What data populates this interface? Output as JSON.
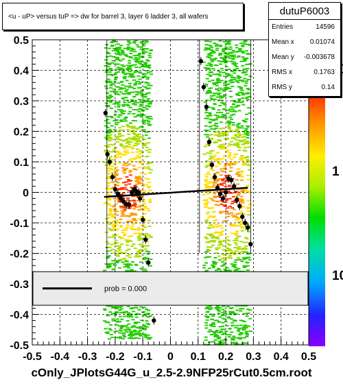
{
  "chart_data": {
    "type": "scatter",
    "title": "<u - uP>       versus  tuP =>  dw for barrel 3, layer 6 ladder 3, all  wafers",
    "xlim": [
      -0.5,
      0.5
    ],
    "ylim": [
      -0.5,
      0.5
    ],
    "x_ticks": [
      "-0.5",
      "-0.4",
      "-0.3",
      "-0.2",
      "-0.1",
      "0",
      "0.1",
      "0.2",
      "0.3",
      "0.4",
      "0.5"
    ],
    "y_ticks": [
      "0.5",
      "0.4",
      "0.3",
      "0.2",
      "0.1",
      "0",
      "-0.1",
      "-0.2",
      "-0.3",
      "-0.4",
      "-0.5"
    ],
    "grid": true,
    "colorbar_ticks": [
      "10",
      "1",
      "10"
    ],
    "profile_points": [
      {
        "x": -0.235,
        "y": 0.26
      },
      {
        "x": -0.228,
        "y": 0.125
      },
      {
        "x": -0.22,
        "y": 0.1
      },
      {
        "x": -0.21,
        "y": 0.05
      },
      {
        "x": -0.2,
        "y": 0.01
      },
      {
        "x": -0.19,
        "y": -0.005
      },
      {
        "x": -0.18,
        "y": -0.02
      },
      {
        "x": -0.17,
        "y": -0.03
      },
      {
        "x": -0.16,
        "y": -0.04
      },
      {
        "x": -0.15,
        "y": -0.04
      },
      {
        "x": -0.14,
        "y": 0.0
      },
      {
        "x": -0.13,
        "y": 0.01
      },
      {
        "x": -0.125,
        "y": 0.005
      },
      {
        "x": -0.12,
        "y": -0.005
      },
      {
        "x": -0.115,
        "y": 0.0
      },
      {
        "x": -0.11,
        "y": -0.02
      },
      {
        "x": -0.1,
        "y": -0.09
      },
      {
        "x": -0.09,
        "y": -0.155
      },
      {
        "x": -0.08,
        "y": -0.23
      },
      {
        "x": -0.06,
        "y": -0.42
      },
      {
        "x": 0.11,
        "y": 0.43
      },
      {
        "x": 0.12,
        "y": 0.345
      },
      {
        "x": 0.13,
        "y": 0.28
      },
      {
        "x": 0.14,
        "y": 0.165
      },
      {
        "x": 0.15,
        "y": 0.09
      },
      {
        "x": 0.16,
        "y": 0.05
      },
      {
        "x": 0.17,
        "y": 0.015
      },
      {
        "x": 0.18,
        "y": -0.005
      },
      {
        "x": 0.19,
        "y": -0.02
      },
      {
        "x": 0.2,
        "y": 0.0
      },
      {
        "x": 0.21,
        "y": 0.045
      },
      {
        "x": 0.22,
        "y": 0.04
      },
      {
        "x": 0.23,
        "y": 0.02
      },
      {
        "x": 0.24,
        "y": -0.025
      },
      {
        "x": 0.25,
        "y": -0.045
      },
      {
        "x": 0.26,
        "y": -0.08
      },
      {
        "x": 0.27,
        "y": -0.1
      },
      {
        "x": 0.28,
        "y": -0.115
      },
      {
        "x": 0.29,
        "y": -0.17
      }
    ],
    "fit_line": {
      "x": [
        -0.24,
        0.28
      ],
      "y": [
        -0.015,
        0.015
      ]
    },
    "legend": {
      "label": "prob = 0.000",
      "y_range": [
        -0.37,
        -0.26
      ]
    }
  },
  "stats": {
    "name": "dutuP6003",
    "rows": [
      {
        "key": "Entries",
        "value": "14596"
      },
      {
        "key": "Mean x",
        "value": "0.01074"
      },
      {
        "key": "Mean y",
        "value": "-0.003678"
      },
      {
        "key": "RMS x",
        "value": "0.1763"
      },
      {
        "key": "RMS y",
        "value": "0.14"
      }
    ]
  },
  "footer": "cOnly_JPlotsG44G_u_2.5-2.9NFP25rCut0.5cm.root"
}
